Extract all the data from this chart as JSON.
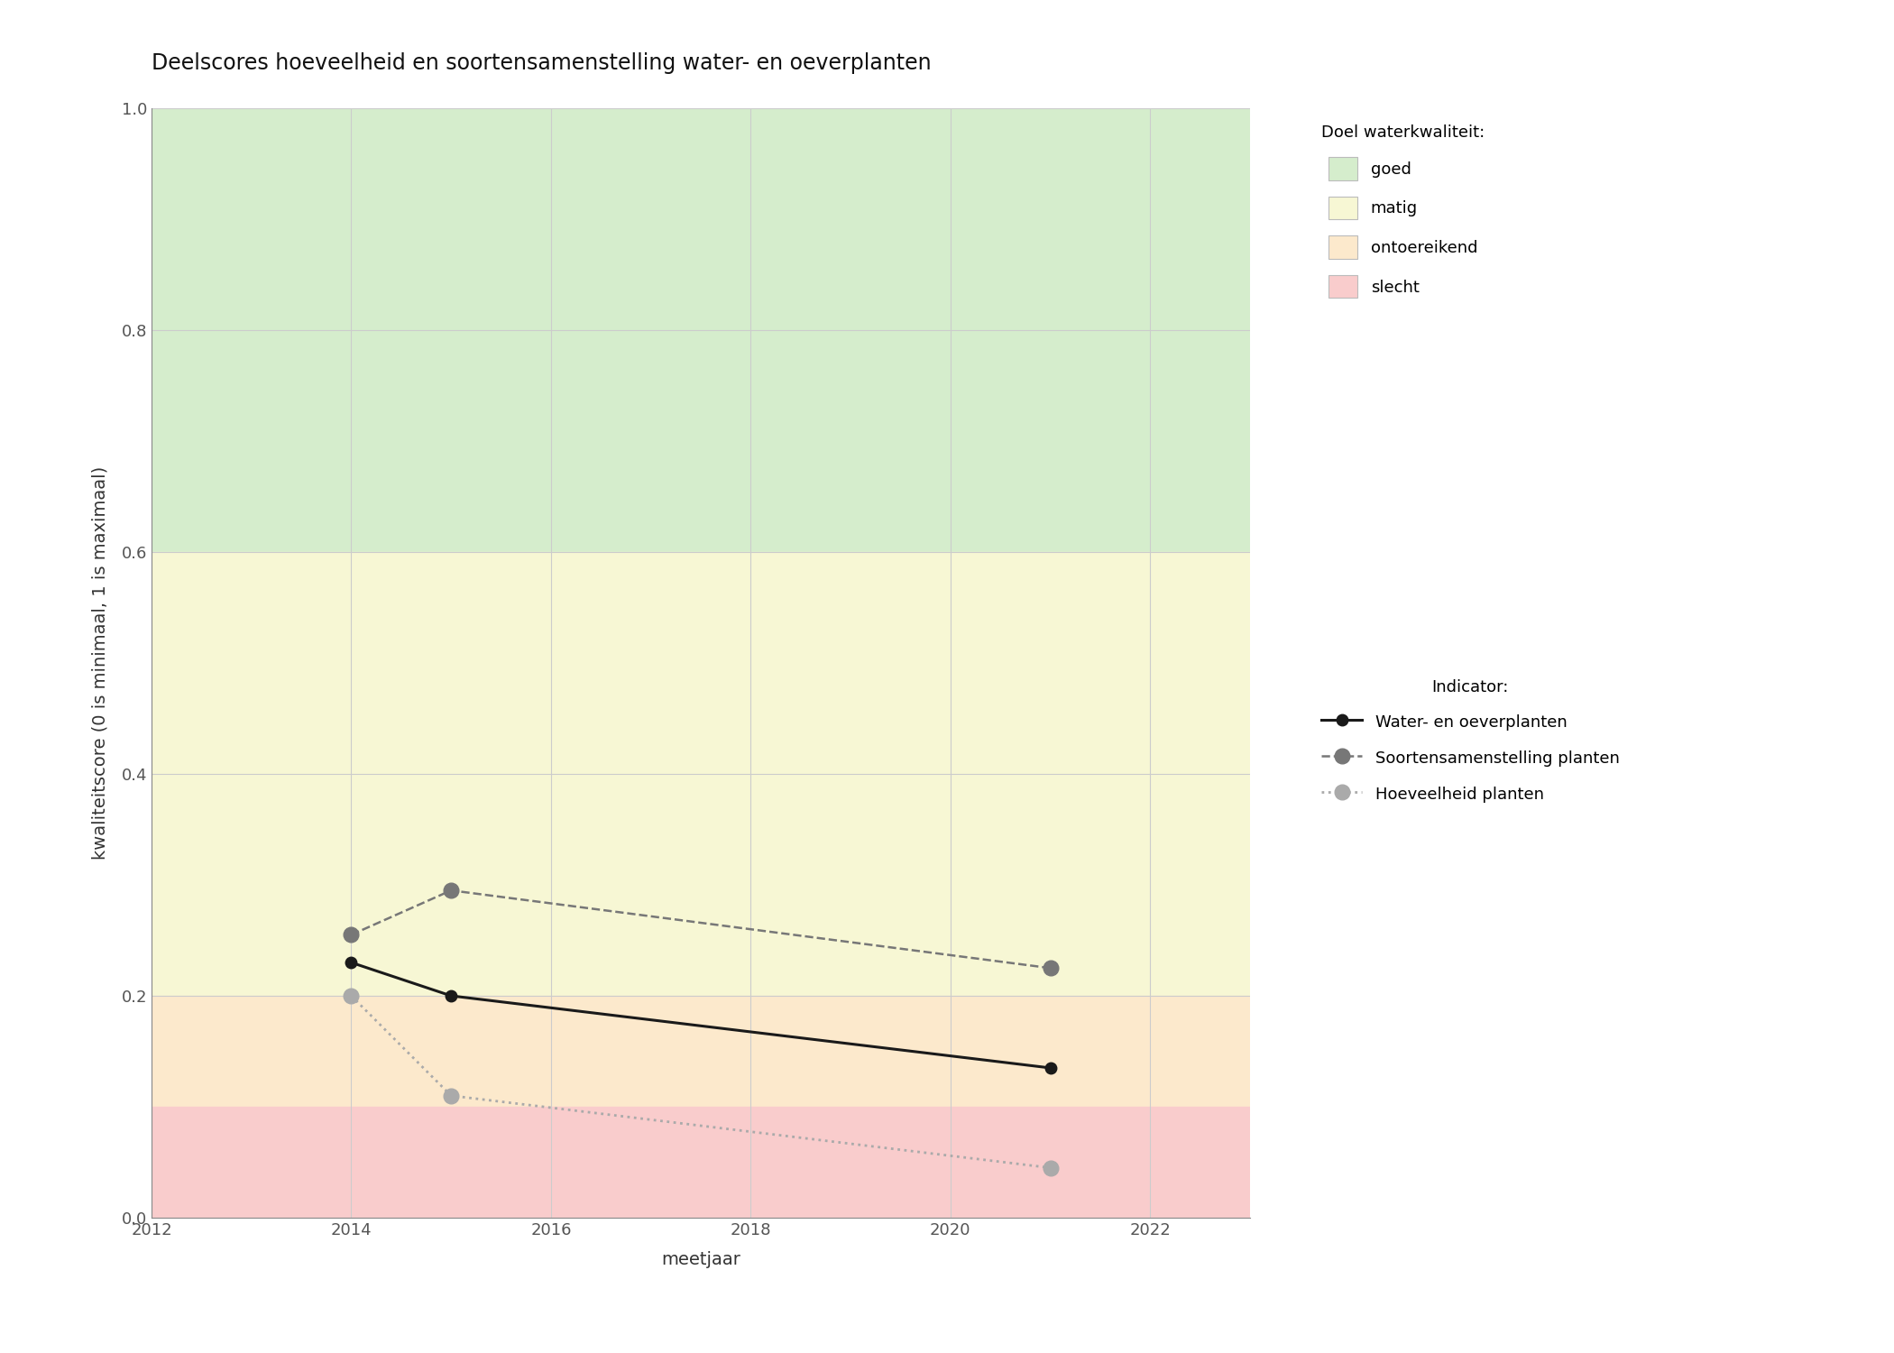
{
  "title": "Deelscores hoeveelheid en soortensamenstelling water- en oeverplanten",
  "xlabel": "meetjaar",
  "ylabel": "kwaliteitscore (0 is minimaal, 1 is maximaal)",
  "xlim": [
    2012,
    2023
  ],
  "ylim": [
    0.0,
    1.0
  ],
  "xticks": [
    2012,
    2014,
    2016,
    2018,
    2020,
    2022
  ],
  "yticks": [
    0.0,
    0.2,
    0.4,
    0.6,
    0.8,
    1.0
  ],
  "bg_bands": [
    {
      "ymin": 0.6,
      "ymax": 1.0,
      "color": "#d5edcc",
      "label": "goed"
    },
    {
      "ymin": 0.2,
      "ymax": 0.6,
      "color": "#f7f7d4",
      "label": "matig"
    },
    {
      "ymin": 0.1,
      "ymax": 0.2,
      "color": "#fce9cc",
      "label": "ontoereikend"
    },
    {
      "ymin": 0.0,
      "ymax": 0.1,
      "color": "#f9cccc",
      "label": "slecht"
    }
  ],
  "series": [
    {
      "name": "Water- en oeverplanten",
      "x": [
        2014,
        2015,
        2021
      ],
      "y": [
        0.23,
        0.2,
        0.135
      ],
      "color": "#1a1a1a",
      "linestyle": "solid",
      "linewidth": 2.2,
      "markersize": 9,
      "marker": "o",
      "zorder": 5
    },
    {
      "name": "Soortensamenstelling planten",
      "x": [
        2014,
        2015,
        2021
      ],
      "y": [
        0.255,
        0.295,
        0.225
      ],
      "color": "#777777",
      "linestyle": "dashed",
      "linewidth": 1.8,
      "markersize": 12,
      "marker": "o",
      "zorder": 4
    },
    {
      "name": "Hoeveelheid planten",
      "x": [
        2014,
        2015,
        2021
      ],
      "y": [
        0.2,
        0.11,
        0.045
      ],
      "color": "#aaaaaa",
      "linestyle": "dotted",
      "linewidth": 2.0,
      "markersize": 12,
      "marker": "o",
      "zorder": 3
    }
  ],
  "legend_title_quality": "Doel waterkwaliteit:",
  "legend_title_indicator": "Indicator:",
  "bg_color": "#ffffff",
  "grid_color": "#cccccc",
  "title_fontsize": 17,
  "label_fontsize": 14,
  "tick_fontsize": 13,
  "legend_fontsize": 13,
  "axis_color": "#555555"
}
